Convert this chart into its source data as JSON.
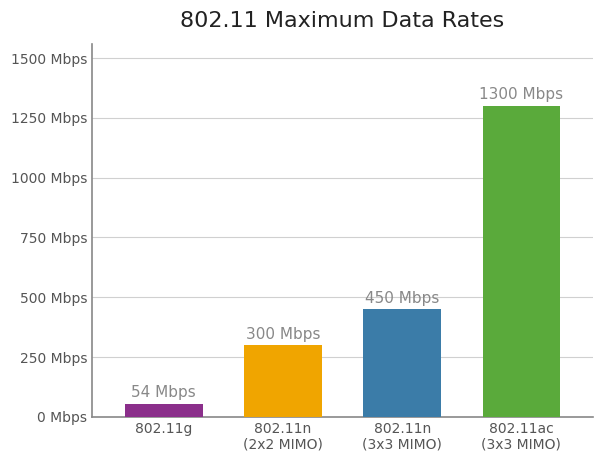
{
  "title": "802.11 Maximum Data Rates",
  "categories": [
    "802.11g",
    "802.11n\n(2x2 MIMO)",
    "802.11n\n(3x3 MIMO)",
    "802.11ac\n(3x3 MIMO)"
  ],
  "values": [
    54,
    300,
    450,
    1300
  ],
  "bar_colors": [
    "#8b2f8b",
    "#f0a500",
    "#3b7ca8",
    "#5aaa3b"
  ],
  "bar_labels": [
    "54 Mbps",
    "300 Mbps",
    "450 Mbps",
    "1300 Mbps"
  ],
  "yticks": [
    0,
    250,
    500,
    750,
    1000,
    1250,
    1500
  ],
  "ytick_labels": [
    "0 Mbps",
    "250 Mbps",
    "500 Mbps",
    "750 Mbps",
    "1000 Mbps",
    "1250 Mbps",
    "1500 Mbps"
  ],
  "ylim": [
    0,
    1560
  ],
  "title_fontsize": 16,
  "label_fontsize": 11,
  "tick_fontsize": 10,
  "background_color": "#ffffff",
  "grid_color": "#d0d0d0",
  "annotation_color": "#888888",
  "spine_color": "#888888",
  "bar_width": 0.65
}
